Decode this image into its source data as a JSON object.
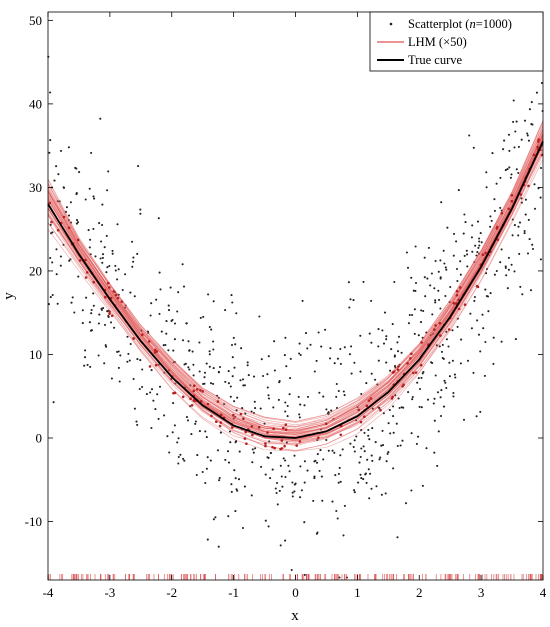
{
  "chart_data": {
    "type": "scatter",
    "title": "",
    "xlabel": "x",
    "ylabel": "y",
    "xlim": [
      -4,
      4
    ],
    "ylim": [
      -17,
      51
    ],
    "x_ticks": [
      -4,
      -3,
      -2,
      -1,
      0,
      1,
      2,
      3,
      4
    ],
    "y_ticks": [
      -10,
      0,
      10,
      20,
      30,
      40,
      50
    ],
    "grid": false,
    "legend_position": "top-right",
    "legend": {
      "scatter_prefix": "Scatterplot (",
      "scatter_n": "n",
      "scatter_suffix": "=1000)",
      "lhm": "LHM (×50)",
      "true_curve": "True curve"
    },
    "colors": {
      "points": "#222222",
      "lhm": "#e05555",
      "true_curve": "#000000",
      "rug": "#d94040"
    },
    "series": [
      {
        "name": "True curve",
        "kind": "line",
        "x": [
          -4,
          -3.5,
          -3,
          -2.5,
          -2,
          -1.5,
          -1,
          -0.5,
          0,
          0.5,
          1,
          1.5,
          2,
          2.5,
          3,
          3.5,
          4
        ],
        "y": [
          28,
          22,
          16.6,
          11.6,
          7.3,
          3.9,
          1.5,
          0.2,
          0,
          0.8,
          2.6,
          5.5,
          9.4,
          14.5,
          20.5,
          27.5,
          35.5
        ]
      },
      {
        "name": "LHM (×50)",
        "kind": "band",
        "x": [
          -4,
          -3.5,
          -3,
          -2.5,
          -2,
          -1.5,
          -1,
          -0.5,
          0,
          0.5,
          1,
          1.5,
          2,
          2.5,
          3,
          3.5,
          4
        ],
        "lower": [
          25,
          20,
          15,
          10,
          5.5,
          2,
          -0.5,
          -1.8,
          -2,
          -1.2,
          0.5,
          3.5,
          7.5,
          12.5,
          18.5,
          25.5,
          33
        ],
        "upper": [
          31,
          24,
          18.5,
          13.5,
          9.5,
          6,
          3.8,
          2.5,
          2,
          2.8,
          4.8,
          7.5,
          11.3,
          16.5,
          22.5,
          29.5,
          38
        ]
      },
      {
        "name": "Scatterplot (n=1000)",
        "kind": "scatter",
        "n": 1000
      }
    ]
  }
}
